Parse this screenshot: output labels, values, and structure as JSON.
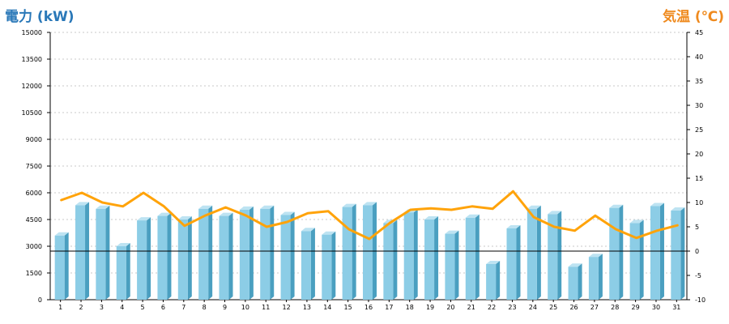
{
  "colors": {
    "bar_front": "#8ccde6",
    "bar_side": "#4a9fc0",
    "bar_top": "#bde3f2",
    "line": "#ffa30a",
    "left_title": "#2a78b8",
    "right_title": "#ef8a1e",
    "grid": "#c8c8c8",
    "axis": "#000000"
  },
  "chart_data": {
    "type": "bar",
    "left_axis_title": "電力 (kW)",
    "right_axis_title": "気温 (℃)",
    "ylim_left": [
      0,
      15000
    ],
    "ylim_right": [
      -10,
      45
    ],
    "y_ticks_left": [
      0,
      1500,
      3000,
      4500,
      6000,
      7500,
      9000,
      10500,
      12000,
      13500,
      15000
    ],
    "y_ticks_right": [
      -10,
      -5,
      0,
      5,
      10,
      15,
      20,
      25,
      30,
      35,
      40,
      45
    ],
    "categories": [
      "1",
      "2",
      "3",
      "4",
      "5",
      "6",
      "7",
      "8",
      "9",
      "10",
      "11",
      "12",
      "13",
      "14",
      "15",
      "16",
      "17",
      "18",
      "19",
      "20",
      "21",
      "22",
      "23",
      "24",
      "25",
      "26",
      "27",
      "28",
      "29",
      "30",
      "31"
    ],
    "series": [
      {
        "axis": "left",
        "type": "bar",
        "values": [
          3600,
          5300,
          5100,
          3000,
          4450,
          4700,
          4500,
          5100,
          4700,
          5050,
          5100,
          4750,
          3850,
          3650,
          5200,
          5300,
          4300,
          4900,
          4500,
          3700,
          4600,
          2000,
          4000,
          5100,
          4800,
          1850,
          2400,
          5150,
          4300,
          5250,
          5000
        ]
      },
      {
        "axis": "right",
        "type": "line",
        "values": [
          10.5,
          12,
          10,
          9.2,
          12,
          9.2,
          5.2,
          7.3,
          9,
          7.3,
          5,
          6,
          7.8,
          8.2,
          4.5,
          2.5,
          5.8,
          8.5,
          8.8,
          8.5,
          9.2,
          8.7,
          12.3,
          7,
          5,
          4.2,
          7.3,
          4.5,
          2.7,
          4.2,
          5.3
        ]
      }
    ],
    "grid": "horizontal-dashed"
  }
}
